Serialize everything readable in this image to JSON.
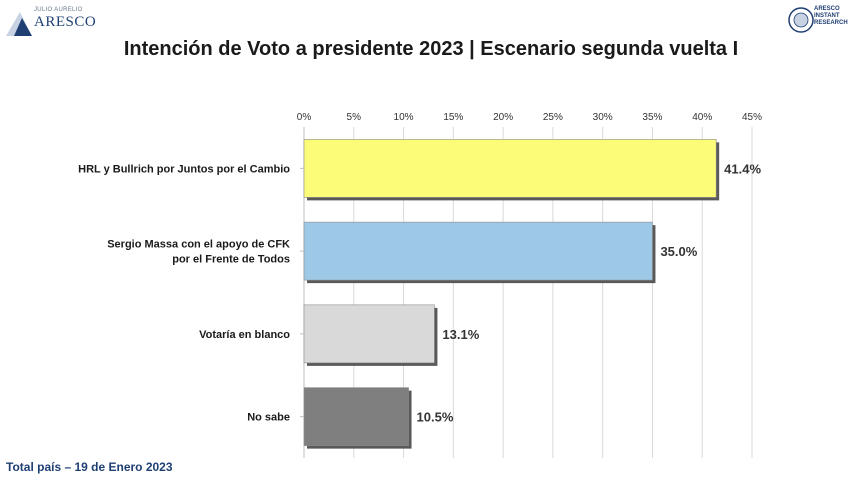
{
  "header": {
    "logo_left_tagline": "JULIO AURELIO",
    "logo_left_brand": "ARESCO",
    "logo_right_lines": [
      "ARESCO",
      "INSTANT",
      "RESEARCH"
    ]
  },
  "title": "Intención de Voto a presidente 2023 | Escenario segunda vuelta I",
  "footer": "Total país – 19 de Enero 2023",
  "chart_data": {
    "type": "bar",
    "orientation": "horizontal",
    "categories": [
      [
        "HRL y Bullrich por Juntos por el Cambio"
      ],
      [
        "Sergio Massa con el apoyo de CFK",
        "por el Frente de Todos"
      ],
      [
        "Votaría en blanco"
      ],
      [
        "No sabe"
      ]
    ],
    "values": [
      41.4,
      35.0,
      13.1,
      10.5
    ],
    "value_labels": [
      "41.4%",
      "35.0%",
      "13.1%",
      "10.5%"
    ],
    "colors": [
      "#fcfc78",
      "#9dc8e6",
      "#d9d9d9",
      "#7f7f7f"
    ],
    "x_ticks": [
      "0%",
      "5%",
      "10%",
      "15%",
      "20%",
      "25%",
      "30%",
      "35%",
      "40%",
      "45%"
    ],
    "xlim": [
      0,
      45
    ],
    "axis_position": "top",
    "grid": true
  }
}
